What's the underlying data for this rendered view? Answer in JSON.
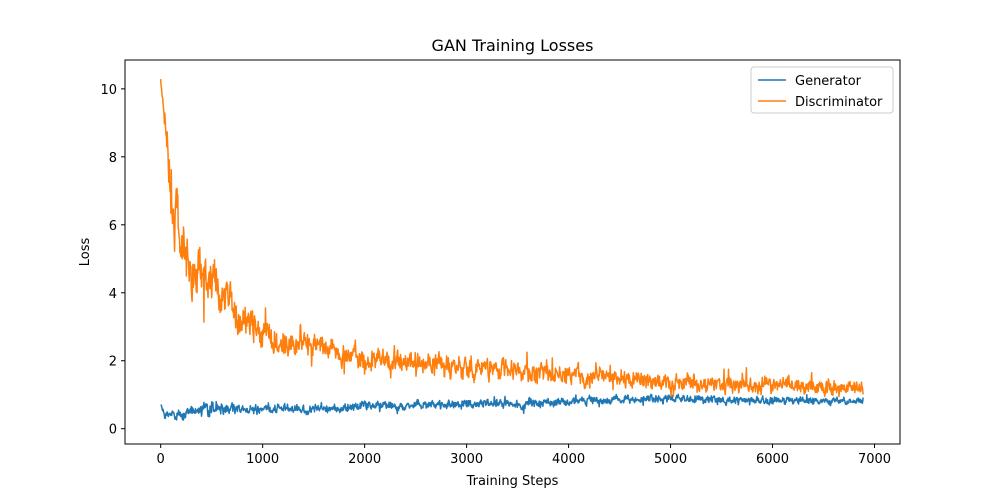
{
  "chart_data": {
    "type": "line",
    "title": "GAN Training Losses",
    "xlabel": "Training Steps",
    "ylabel": "Loss",
    "xlim": [
      -350,
      7250
    ],
    "ylim": [
      -0.45,
      10.85
    ],
    "xticks": [
      0,
      1000,
      2000,
      3000,
      4000,
      5000,
      6000,
      7000
    ],
    "yticks": [
      0,
      2,
      4,
      6,
      8,
      10
    ],
    "grid": false,
    "legend": "top-right",
    "series": [
      {
        "name": "Generator",
        "color": "#1f77b4",
        "x": [
          0,
          50,
          100,
          150,
          200,
          300,
          400,
          500,
          600,
          800,
          1000,
          1200,
          1500,
          2000,
          2500,
          3000,
          3500,
          4000,
          4500,
          5000,
          5500,
          6000,
          6500,
          6890
        ],
        "y": [
          0.72,
          0.35,
          0.4,
          0.32,
          0.42,
          0.5,
          0.6,
          0.58,
          0.6,
          0.58,
          0.58,
          0.6,
          0.58,
          0.66,
          0.7,
          0.72,
          0.74,
          0.8,
          0.85,
          0.88,
          0.85,
          0.8,
          0.82,
          0.82
        ],
        "noise": [
          0.02,
          0.1,
          0.14,
          0.15,
          0.15,
          0.16,
          0.17,
          0.18,
          0.15,
          0.12,
          0.11,
          0.1,
          0.1,
          0.1,
          0.1,
          0.1,
          0.1,
          0.1,
          0.1,
          0.1,
          0.1,
          0.1,
          0.08,
          0.08
        ]
      },
      {
        "name": "Discriminator",
        "color": "#ff7f0e",
        "x": [
          0,
          30,
          60,
          100,
          150,
          200,
          300,
          400,
          500,
          600,
          800,
          1000,
          1200,
          1500,
          2000,
          2500,
          3000,
          3500,
          4000,
          4500,
          5000,
          5500,
          6000,
          6500,
          6890
        ],
        "y": [
          10.3,
          9.2,
          8.5,
          7.0,
          6.2,
          5.6,
          4.7,
          4.5,
          4.4,
          3.9,
          3.3,
          2.8,
          2.5,
          2.4,
          2.0,
          1.9,
          1.8,
          1.65,
          1.6,
          1.5,
          1.35,
          1.3,
          1.3,
          1.2,
          1.2
        ],
        "noise": [
          0.05,
          0.3,
          0.45,
          0.8,
          0.8,
          0.7,
          0.6,
          0.6,
          0.55,
          0.45,
          0.4,
          0.35,
          0.3,
          0.3,
          0.28,
          0.27,
          0.25,
          0.25,
          0.22,
          0.2,
          0.2,
          0.2,
          0.2,
          0.18,
          0.18
        ]
      }
    ]
  }
}
